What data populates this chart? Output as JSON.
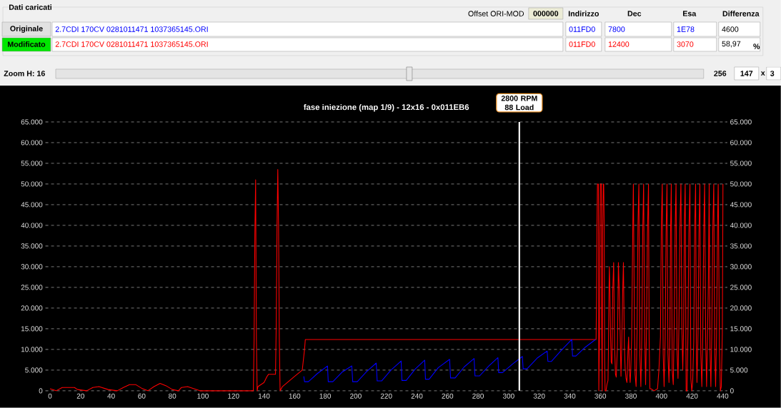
{
  "chart_data": {
    "type": "line",
    "title": "fase iniezione (map 1/9) - 12x16 - 0x011EB6",
    "annotations": [
      "Dati caricati",
      "Offset ORI-MOD",
      "000000",
      "Indirizzo",
      "Dec",
      "Esa",
      "Differenza",
      "Originale",
      "Modificato",
      "2.7CDI 170CV 0281011471 1037365145.ORI",
      "011FD0",
      "7800",
      "1E78",
      "4600",
      "2.7CDI 170CV 0281011471 1037365145.ORI",
      "011FD0",
      "12400",
      "3070",
      "58,97",
      "%",
      "Zoom H: 16",
      "256",
      "147",
      "x",
      "3"
    ],
    "xlim": [
      -3,
      443
    ],
    "xticks": [
      0,
      20,
      40,
      60,
      80,
      100,
      120,
      140,
      160,
      180,
      200,
      220,
      240,
      260,
      280,
      300,
      320,
      340,
      360,
      380,
      400,
      420,
      440
    ],
    "ylim": [
      0,
      65
    ],
    "yticks": [
      0,
      {
        "value": 5,
        "label": "5.000"
      },
      {
        "value": 10,
        "label": "10.000"
      },
      {
        "value": 15,
        "label": "15.000"
      },
      {
        "value": 20,
        "label": "20.000"
      },
      {
        "value": 25,
        "label": "25.000"
      },
      {
        "value": 30,
        "label": "30.000"
      },
      {
        "value": 35,
        "label": "35.000"
      },
      {
        "value": 40,
        "label": "40.000"
      },
      {
        "value": 45,
        "label": "45.000"
      },
      {
        "value": 50,
        "label": "50.000"
      },
      {
        "value": 55,
        "label": "55.000"
      },
      {
        "value": 60,
        "label": "60.000"
      },
      {
        "value": 65,
        "label": "65.000"
      }
    ],
    "y2lim": [
      0,
      65
    ],
    "y2ticks": [
      0,
      {
        "value": 5,
        "label": "5.000"
      },
      {
        "value": 10,
        "label": "10.000"
      },
      {
        "value": 15,
        "label": "15.000"
      },
      {
        "value": 20,
        "label": "20.000"
      },
      {
        "value": 25,
        "label": "25.000"
      },
      {
        "value": 30,
        "label": "30.000"
      },
      {
        "value": 35,
        "label": "35.000"
      },
      {
        "value": 40,
        "label": "40.000"
      },
      {
        "value": 45,
        "label": "45.000"
      },
      {
        "value": 50,
        "label": "50.000"
      },
      {
        "value": 55,
        "label": "55.000"
      },
      {
        "value": 60,
        "label": "60.000"
      },
      {
        "value": 65,
        "label": "65.000"
      }
    ],
    "grid": "y",
    "series": [
      {
        "color": "#ff0000",
        "x": [
          0,
          4,
          8,
          16,
          18,
          24,
          28,
          32,
          38,
          44,
          48,
          52,
          56,
          60,
          64,
          68,
          72,
          76,
          80,
          84,
          86,
          90,
          94,
          98,
          133,
          133.5,
          134,
          134.5,
          135,
          135.5,
          136,
          140,
          142,
          143,
          147.5,
          148,
          148.5,
          149,
          149.5,
          150,
          150.5,
          152,
          160,
          165,
          166.5,
          167,
          357.2,
          357.5,
          357.8,
          358.1,
          358.7,
          359.0,
          359.4,
          359.7,
          360.0,
          360.6,
          360.9,
          361.2,
          361.5,
          361.9,
          362.2,
          362.5,
          362.8,
          363.1,
          363.7,
          364.3,
          365.0,
          365.3,
          365.6,
          365.9,
          366.2,
          366.7,
          367.1,
          367.6,
          368.1,
          368.7,
          369.3,
          369.9,
          370.4,
          371.2,
          371.8,
          372.4,
          373.1,
          373.5,
          374.0,
          374.6,
          375.1,
          375.7,
          376.2,
          376.8,
          377.4,
          378.1,
          378.5,
          379.0,
          379.5,
          379.9,
          380.5,
          381.2,
          381.6,
          382.3,
          382.7,
          383.4,
          384.0,
          384.6,
          385.2,
          385.8,
          386.5,
          387.1,
          387.7,
          388.3,
          389.0,
          389.6,
          390.2,
          390.8,
          391.5,
          391.9,
          392.4,
          393.0,
          395.2,
          397.4,
          398.3,
          399.3,
          399.9,
          400.5,
          401.1,
          401.7,
          402.4,
          403.0,
          403.6,
          404.2,
          404.9,
          405.5,
          405.9,
          406.4,
          407.0,
          407.7,
          408.3,
          408.9,
          409.5,
          410.2,
          410.8,
          411.4,
          412.0,
          412.7,
          413.3,
          413.9,
          414.5,
          415.0,
          415.5,
          416.1,
          416.7,
          417.3,
          417.9,
          418.6,
          419.2,
          419.8,
          420.4,
          421.1,
          421.7,
          422.3,
          422.8,
          423.2,
          423.9,
          424.5,
          425.1,
          425.7,
          426.4,
          427.0,
          427.6,
          428.2,
          428.9,
          429.5,
          430.1,
          430.7,
          431.2,
          431.7,
          432.3,
          432.9,
          433.5,
          434.2,
          434.8,
          435.4,
          436.0,
          436.7,
          437.1,
          437.9,
          438.5,
          439.1,
          439.8,
          440.2
        ],
        "values": [
          0.5,
          0,
          0.8,
          0.8,
          0.3,
          0,
          0.8,
          1,
          0.3,
          0,
          0.8,
          1.5,
          1.5,
          0.6,
          0,
          1,
          1.8,
          1.2,
          0.3,
          0,
          0.8,
          1,
          0.5,
          0,
          0,
          12.5,
          38,
          51,
          12.5,
          0,
          1,
          2,
          3.5,
          4,
          4,
          16.5,
          40,
          53.5,
          40,
          12.5,
          0,
          1,
          3.5,
          5,
          10,
          12.4,
          12.4,
          22,
          40,
          50,
          50,
          0,
          12.5,
          37.5,
          50,
          50,
          13.5,
          0,
          37.5,
          50,
          50,
          40,
          8,
          0,
          0,
          1.5,
          2.5,
          10,
          23,
          30,
          25,
          13,
          7,
          6.5,
          24,
          31,
          11,
          4,
          3.3,
          11,
          31,
          24,
          11,
          3.5,
          11,
          24,
          31,
          11,
          5.5,
          3,
          2,
          10,
          13,
          5,
          2,
          5,
          13,
          39,
          50,
          16,
          4,
          1,
          14,
          40,
          50,
          9,
          1,
          13,
          38,
          50,
          13,
          1.5,
          15,
          38,
          50,
          13,
          0.5,
          0.5,
          0,
          0.5,
          5,
          13,
          40,
          50,
          9,
          1,
          13,
          38,
          50,
          9,
          2,
          13,
          38,
          50,
          5,
          1.5,
          16,
          39,
          50,
          9,
          3,
          16,
          39,
          50,
          16,
          5,
          16,
          41,
          50,
          0,
          0,
          14,
          38,
          50,
          3,
          0,
          2,
          12,
          39,
          50,
          10,
          2,
          14,
          38,
          50,
          9,
          1,
          13,
          38,
          50,
          12,
          1,
          13,
          27,
          50,
          10,
          1,
          14,
          38,
          50,
          10,
          1,
          13,
          41,
          50,
          10,
          0,
          1,
          14,
          50
        ]
      },
      {
        "color": "#0000ff",
        "x": [
          166,
          166.5,
          169,
          175,
          181.5,
          182,
          185,
          191,
          197.4,
          198,
          201,
          207,
          213.4,
          214,
          217,
          223,
          229.7,
          230.2,
          233,
          239,
          245.1,
          245.6,
          248,
          254,
          261.4,
          262,
          265,
          271,
          277.4,
          278,
          281,
          287,
          293,
          293.5,
          296,
          303,
          309,
          309.5,
          312,
          319,
          325.2,
          325.7,
          328,
          335,
          341.3,
          341.8,
          344,
          350,
          356.8
        ],
        "values": [
          3.5,
          2.2,
          2.2,
          4.2,
          6,
          2.2,
          2.2,
          4.5,
          6,
          2.2,
          2.2,
          4.6,
          6.7,
          2.4,
          2.4,
          5,
          7.2,
          2.5,
          2.5,
          5.3,
          7.4,
          2.8,
          2.8,
          5.6,
          7.6,
          3.1,
          3.1,
          5.8,
          7.8,
          3.6,
          3.6,
          6,
          8,
          4.4,
          4.4,
          6.6,
          8.3,
          5.3,
          5.3,
          8,
          9.6,
          7.1,
          7.1,
          10,
          12.4,
          8.4,
          8.4,
          10.5,
          12.4
        ]
      }
    ],
    "ref_lines": [
      {
        "axis": "x",
        "value": 307,
        "label": "2800 RPM 88 Load",
        "color": "#ffffff"
      }
    ]
  }
}
